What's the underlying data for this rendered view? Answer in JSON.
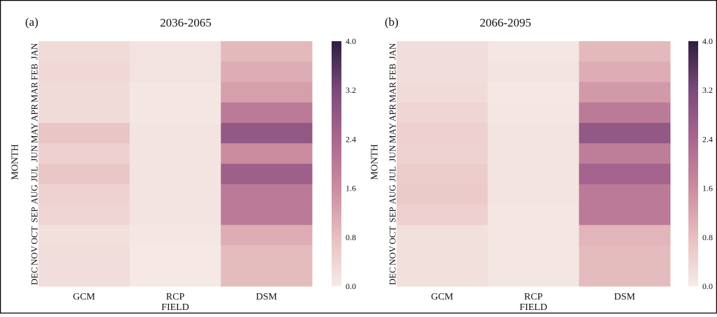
{
  "chart_data": [
    {
      "type": "heatmap",
      "panel_label": "(a)",
      "title": "2036-2065",
      "xlabel": "FIELD",
      "ylabel": "MONTH",
      "x_categories": [
        "GCM",
        "RCP",
        "DSM"
      ],
      "y_categories": [
        "JAN",
        "FEB",
        "MAR",
        "APR",
        "MAY",
        "JUN",
        "JUL",
        "AUG",
        "SEP",
        "OCT",
        "NOV",
        "DEC"
      ],
      "values": [
        [
          0.3,
          0.15,
          0.9
        ],
        [
          0.35,
          0.15,
          1.1
        ],
        [
          0.3,
          0.1,
          1.3
        ],
        [
          0.3,
          0.1,
          2.0
        ],
        [
          0.7,
          0.12,
          2.8
        ],
        [
          0.5,
          0.12,
          1.6
        ],
        [
          0.65,
          0.12,
          2.6
        ],
        [
          0.45,
          0.12,
          2.0
        ],
        [
          0.4,
          0.12,
          2.0
        ],
        [
          0.2,
          0.1,
          1.1
        ],
        [
          0.25,
          0.05,
          0.85
        ],
        [
          0.25,
          0.05,
          0.85
        ]
      ],
      "colorbar": {
        "min": 0.0,
        "max": 4.0,
        "ticks": [
          "0.0",
          "0.8",
          "1.6",
          "2.4",
          "3.2",
          "4.0"
        ]
      },
      "grid": false
    },
    {
      "type": "heatmap",
      "panel_label": "(b)",
      "title": "2066-2095",
      "xlabel": "FIELD",
      "ylabel": "MONTH",
      "x_categories": [
        "GCM",
        "RCP",
        "DSM"
      ],
      "y_categories": [
        "JAN",
        "FEB",
        "MAR",
        "APR",
        "MAY",
        "JUN",
        "JUL",
        "AUG",
        "SEP",
        "OCT",
        "NOV",
        "DEC"
      ],
      "values": [
        [
          0.25,
          0.1,
          0.9
        ],
        [
          0.25,
          0.12,
          1.1
        ],
        [
          0.3,
          0.08,
          1.4
        ],
        [
          0.4,
          0.1,
          2.0
        ],
        [
          0.5,
          0.15,
          2.8
        ],
        [
          0.45,
          0.15,
          1.9
        ],
        [
          0.55,
          0.15,
          2.5
        ],
        [
          0.6,
          0.12,
          2.0
        ],
        [
          0.5,
          0.1,
          2.0
        ],
        [
          0.2,
          0.1,
          0.95
        ],
        [
          0.2,
          0.1,
          0.85
        ],
        [
          0.2,
          0.1,
          0.85
        ]
      ],
      "colorbar": {
        "min": 0.0,
        "max": 4.0,
        "ticks": [
          "0.0",
          "0.8",
          "1.6",
          "2.4",
          "3.2",
          "4.0"
        ]
      },
      "grid": false
    }
  ],
  "colors": {
    "colormap": [
      "#f6ebe7",
      "#e7bfc0",
      "#cb8ca0",
      "#a9678f",
      "#7b4a7b",
      "#2d1e3e"
    ],
    "frame": "#000000"
  }
}
